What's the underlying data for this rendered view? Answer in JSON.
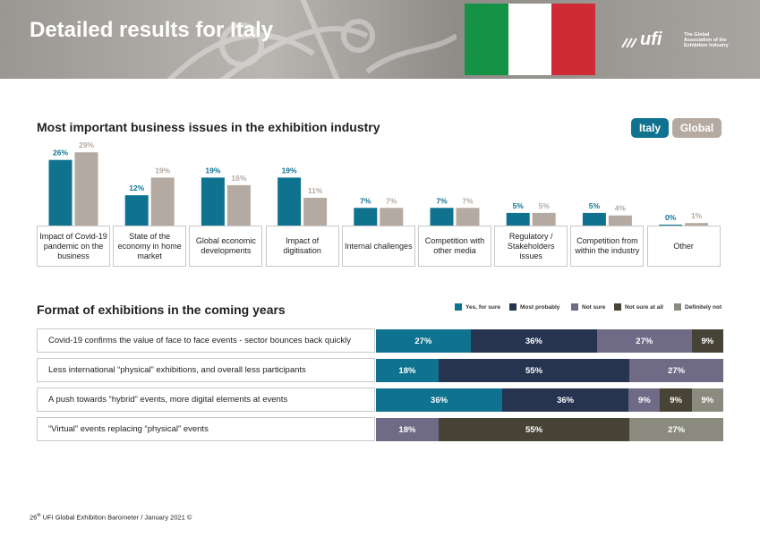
{
  "header": {
    "title": "Detailed results for Italy",
    "flag_colors": [
      "#169246",
      "#ffffff",
      "#ce2b37"
    ],
    "logo_text": "ufi",
    "logo_tagline": "The Global Association of the Exhibition Industry"
  },
  "colors": {
    "italy": "#0f7390",
    "global": "#b5aaa2",
    "yes_for_sure": "#0f7390",
    "most_probably": "#263450",
    "not_sure": "#6f6a85",
    "not_sure_at_all": "#474337",
    "definitely_not": "#8b8a7f"
  },
  "chart_data": [
    {
      "type": "bar",
      "title": "Most important business issues in the exhibition industry",
      "legend": [
        "Italy",
        "Global"
      ],
      "legend_position": "top-right",
      "categories": [
        "Impact of Covid-19 pandemic on the business",
        "State of the economy in home market",
        "Global economic developments",
        "Impact of digitisation",
        "Internal challenges",
        "Competition with other media",
        "Regulatory / Stakeholders issues",
        "Competition from within the industry",
        "Other"
      ],
      "series": [
        {
          "name": "Italy",
          "values": [
            26,
            12,
            19,
            19,
            7,
            7,
            5,
            5,
            0
          ],
          "labels": [
            "26%",
            "12%",
            "19%",
            "19%",
            "7%",
            "7%",
            "5%",
            "5%",
            "0%"
          ]
        },
        {
          "name": "Global",
          "values": [
            29,
            19,
            16,
            11,
            7,
            7,
            5,
            4,
            1
          ],
          "labels": [
            "29%",
            "19%",
            "16%",
            "11%",
            "7%",
            "7%",
            "5%",
            "4%",
            "1%"
          ]
        }
      ],
      "ylim": [
        0,
        30
      ]
    },
    {
      "type": "bar",
      "orientation": "horizontal-stacked",
      "title": "Format of exhibitions in the coming years",
      "legend": [
        "Yes, for sure",
        "Most probably",
        "Not sure",
        "Not sure at all",
        "Definitely not"
      ],
      "legend_position": "top-right",
      "categories": [
        "Covid-19 confirms the value of face to face events - sector bounces back quickly",
        "Less international “physical” exhibitions, and overall less participants",
        "A push towards “hybrid” events, more digital elements at events",
        "“Virtual” events replacing “physical” events"
      ],
      "series": [
        {
          "name": "Yes, for sure",
          "values": [
            27,
            18,
            36,
            0
          ]
        },
        {
          "name": "Most probably",
          "values": [
            36,
            55,
            36,
            0
          ]
        },
        {
          "name": "Not sure",
          "values": [
            27,
            27,
            9,
            18
          ]
        },
        {
          "name": "Not sure at all",
          "values": [
            9,
            0,
            9,
            55
          ]
        },
        {
          "name": "Definitely not",
          "values": [
            0,
            0,
            9,
            27
          ]
        }
      ]
    }
  ],
  "footer": {
    "ordinal": "26",
    "suffix": "th",
    "text": " UFI Global Exhibition Barometer / January 2021 ©"
  }
}
